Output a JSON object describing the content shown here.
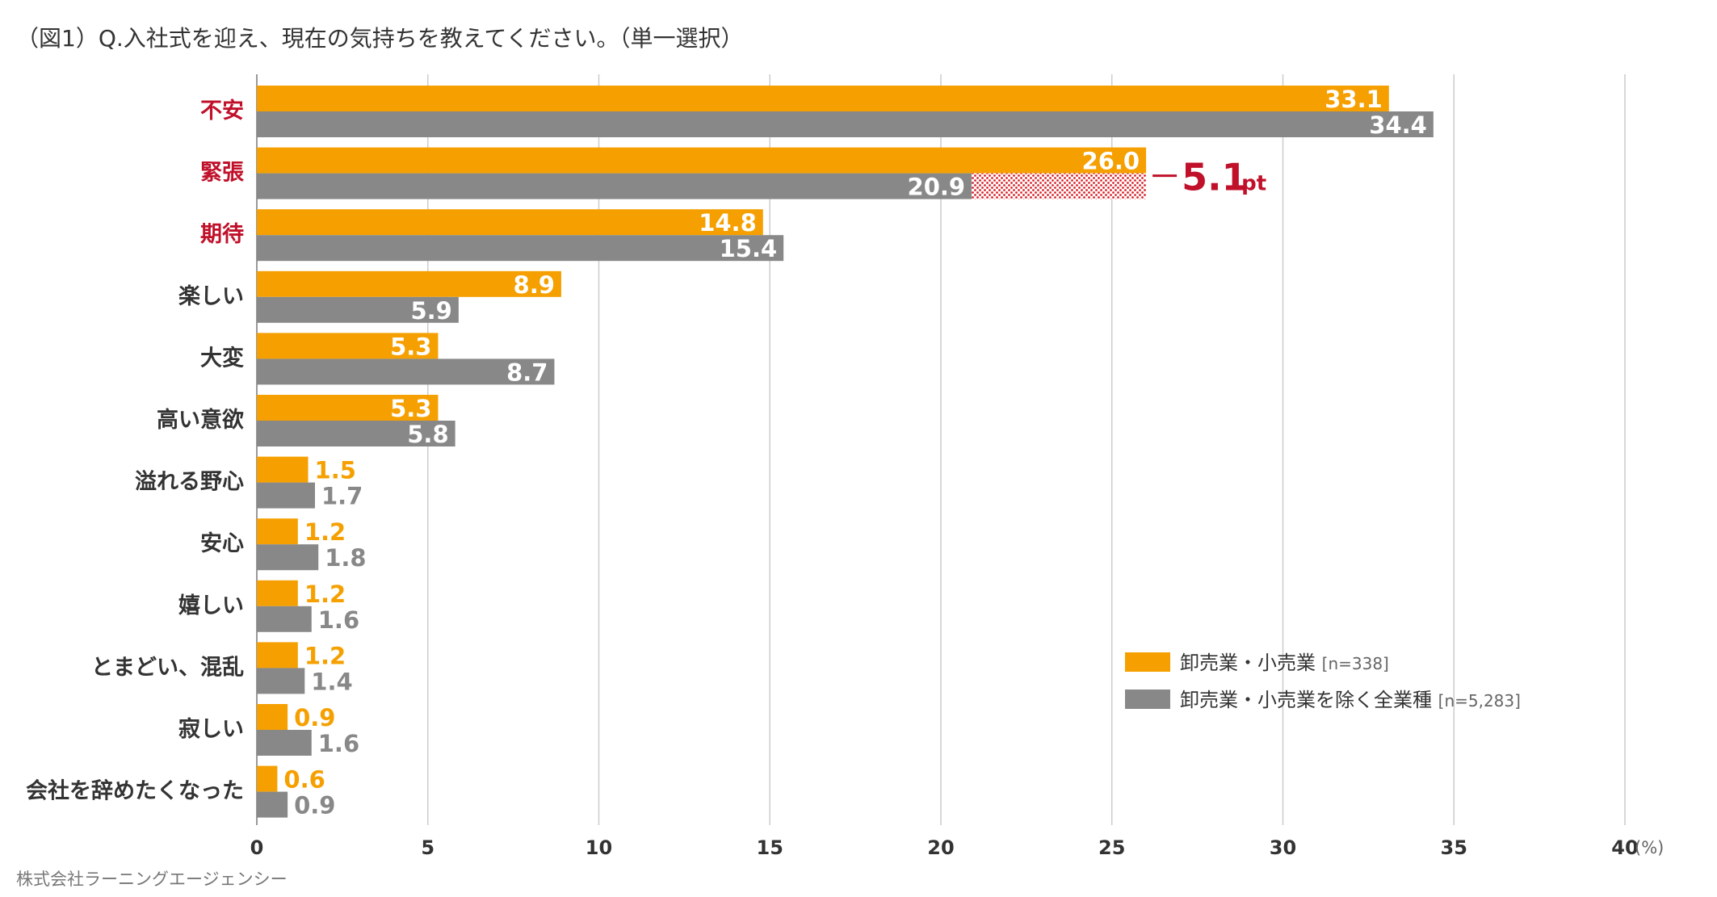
{
  "title": "（図1）Q.入社式を迎え、現在の気持ちを教えてください。（単一選択）",
  "credit": "株式会社ラーニングエージェンシー",
  "colors": {
    "series1": "#f5a000",
    "series2": "#888888",
    "highlight": "#c0102a",
    "axis_text": "#333333",
    "grid": "#cccccc"
  },
  "chart_data": {
    "type": "bar",
    "orientation": "horizontal",
    "categories": [
      "不安",
      "緊張",
      "期待",
      "楽しい",
      "大変",
      "高い意欲",
      "溢れる野心",
      "安心",
      "嬉しい",
      "とまどい、混乱",
      "寂しい",
      "会社を辞めたくなった"
    ],
    "highlighted_categories": [
      "不安",
      "緊張",
      "期待"
    ],
    "series": [
      {
        "name": "卸売業・小売業",
        "n_label": "[n=338]",
        "values": [
          33.1,
          26.0,
          14.8,
          8.9,
          5.3,
          5.3,
          1.5,
          1.2,
          1.2,
          1.2,
          0.9,
          0.6
        ],
        "labels": [
          "33.1",
          "26.0",
          "14.8",
          "8.9",
          "5.3",
          "5.3",
          "1.5",
          "1.2",
          "1.2",
          "1.2",
          "0.9",
          "0.6"
        ]
      },
      {
        "name": "卸売業・小売業を除く全業種",
        "n_label": "[n=5,283]",
        "values": [
          34.4,
          20.9,
          15.4,
          5.9,
          8.7,
          5.8,
          1.7,
          1.8,
          1.6,
          1.4,
          1.6,
          0.9
        ],
        "labels": [
          "34.4",
          "20.9",
          "15.4",
          "5.9",
          "8.7",
          "5.8",
          "1.7",
          "1.8",
          "1.6",
          "1.4",
          "1.6",
          "0.9"
        ]
      }
    ],
    "xlim": [
      0,
      40
    ],
    "xticks": [
      0,
      5,
      10,
      15,
      20,
      25,
      30,
      35,
      40
    ],
    "xtick_labels": [
      "0",
      "5",
      "10",
      "15",
      "20",
      "25",
      "30",
      "35",
      "40"
    ],
    "x_unit": "(%)",
    "grid": true,
    "legend_position": "bottom-right",
    "annotation": {
      "category": "緊張",
      "from": 20.9,
      "to": 26.0,
      "value_text": "5.1",
      "unit_text": "pt"
    }
  }
}
